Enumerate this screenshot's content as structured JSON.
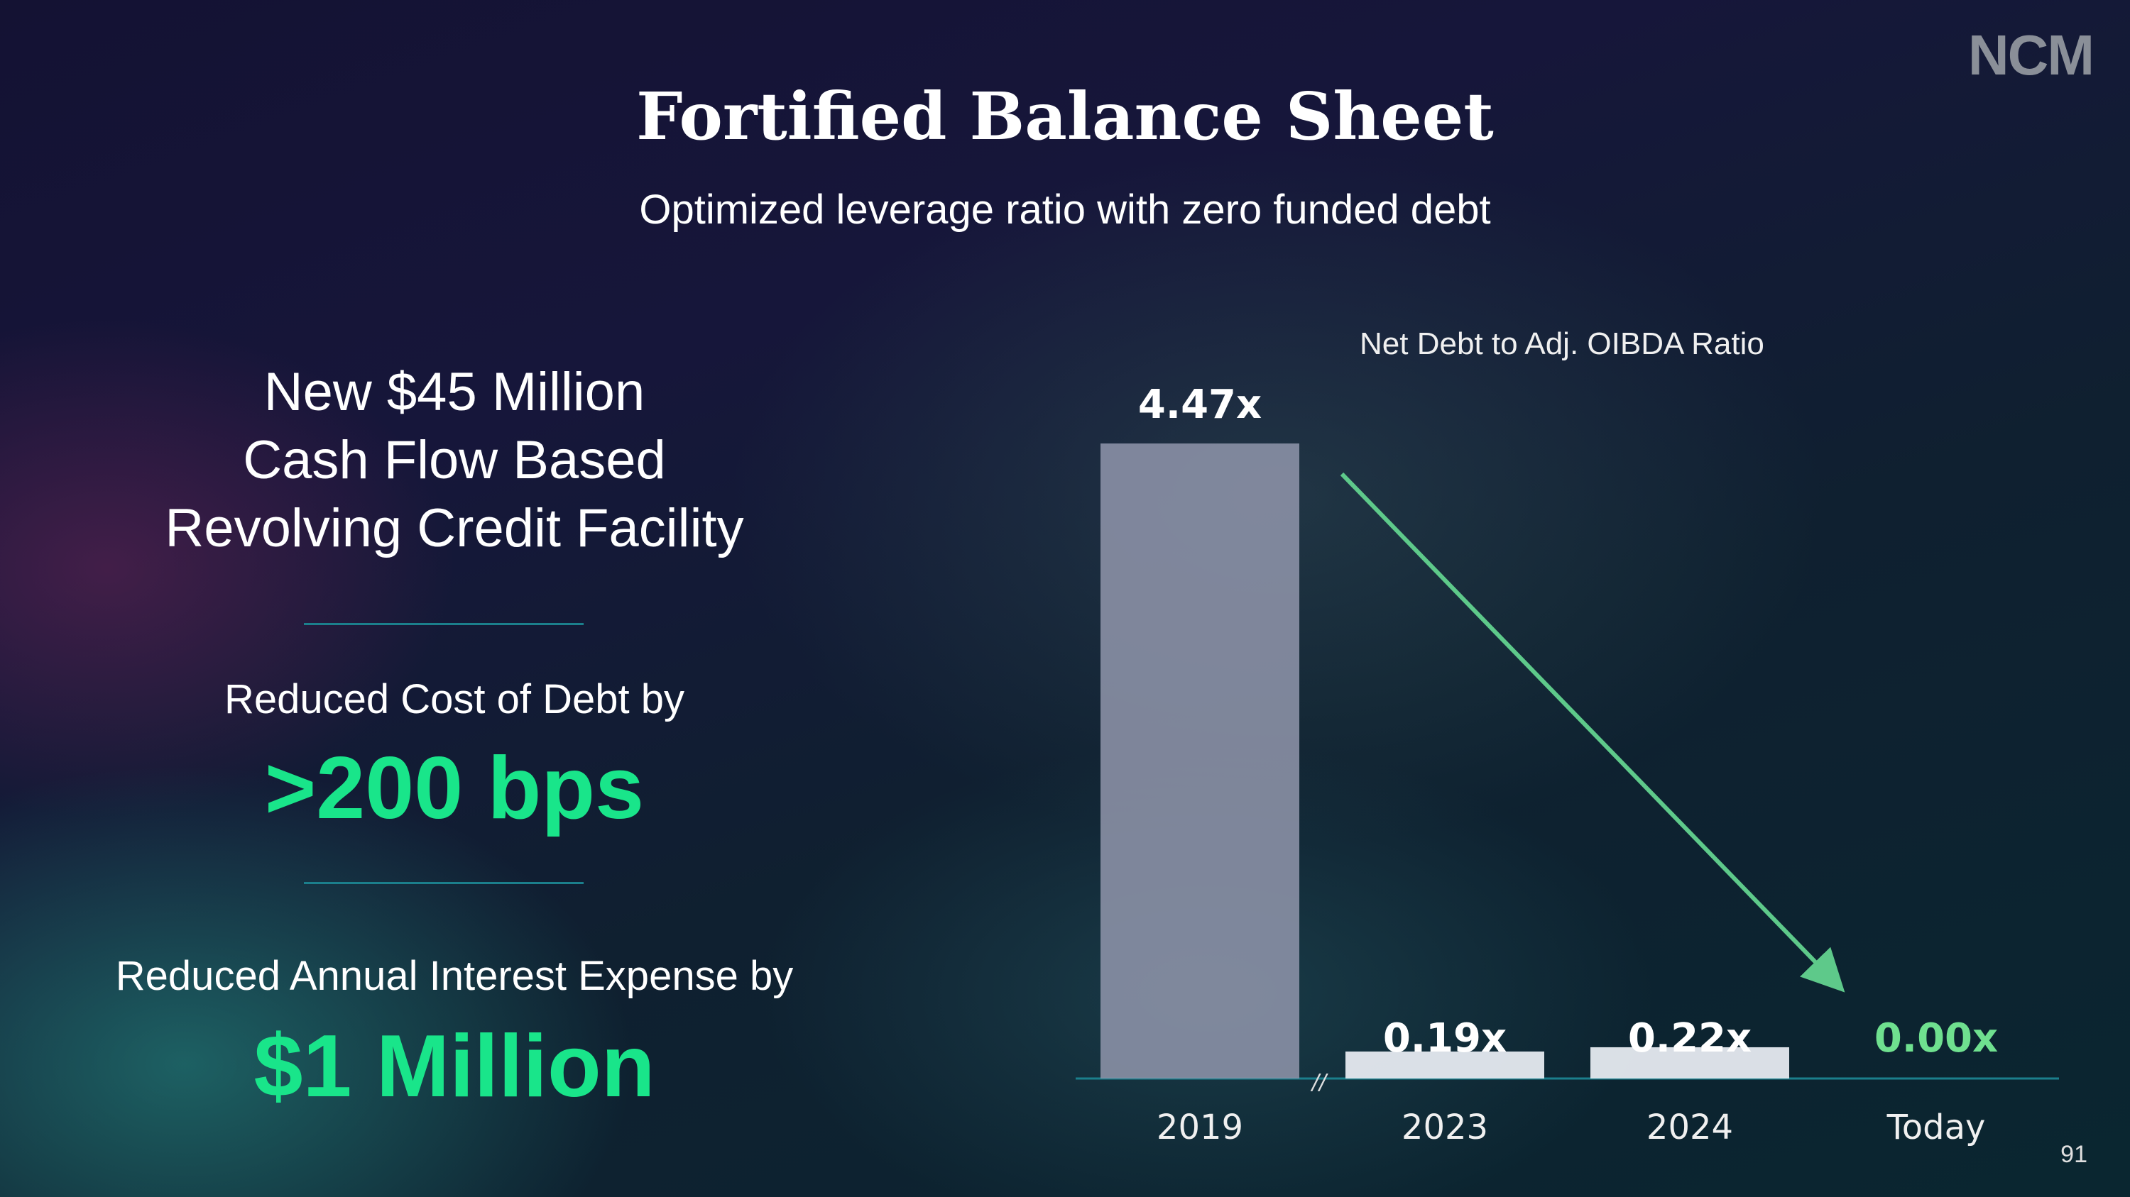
{
  "logo": "NCM",
  "title": "Fortified Balance Sheet",
  "subtitle": "Optimized leverage ratio with zero funded debt",
  "left": {
    "facility_lines": [
      "New $45 Million",
      "Cash Flow Based",
      "Revolving Credit Facility"
    ],
    "cost_label": "Reduced Cost of Debt by",
    "cost_value": ">200 bps",
    "interest_label": "Reduced Annual Interest Expense by",
    "interest_value": "$1 Million"
  },
  "page_number": "91",
  "colors": {
    "accent_green": "#19e58a",
    "today_label": "#6fe08f",
    "bar": "#8d93a8",
    "arrow": "#5ec98a",
    "divider": "#1b7f8c"
  },
  "chart_data": {
    "type": "bar",
    "title": "Net Debt to Adj. OIBDA Ratio",
    "categories": [
      "2019",
      "2023",
      "2024",
      "Today"
    ],
    "values": [
      4.47,
      0.19,
      0.22,
      0.0
    ],
    "data_labels": [
      "4.47x",
      "0.19x",
      "0.22x",
      "0.00x"
    ],
    "axis_break_marker": "//",
    "ylim": [
      0,
      4.47
    ],
    "grid": false,
    "legend": "none",
    "annotation": "downward arrow from 2019 toward Today"
  }
}
